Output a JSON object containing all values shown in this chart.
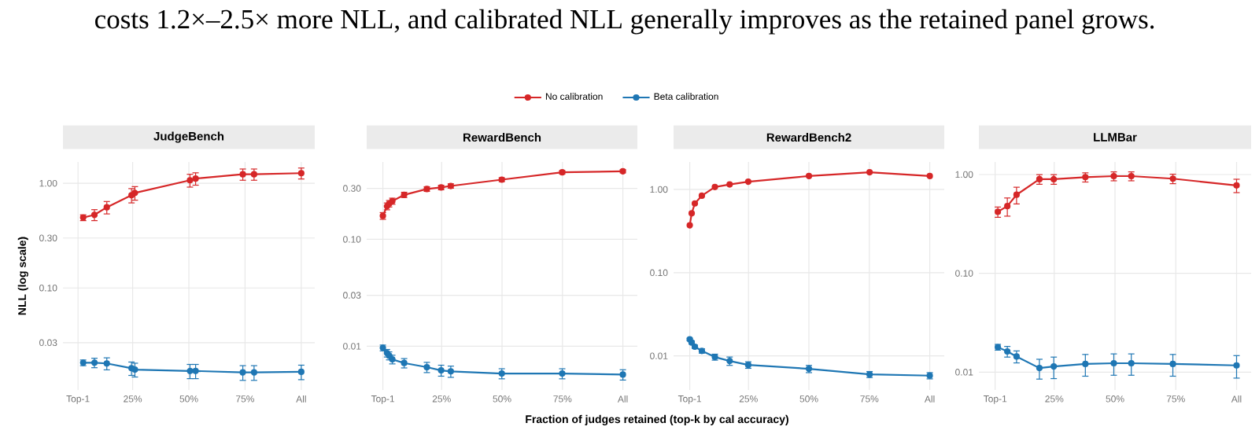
{
  "chart_data": [
    {
      "type": "line",
      "title": "JudgeBench",
      "ylabel": "NLL (log scale)",
      "annotations": [
        "costs 1.2×–2.5× more NLL, and calibrated NLL generally improves as the retained panel grows."
      ],
      "log": "y",
      "grid": true,
      "legend": "top",
      "marker": "circle",
      "xlim": [
        -0.06,
        1.06
      ],
      "ylim": [
        0.0106,
        1.6
      ],
      "xticks": [
        {
          "value": 0.007,
          "label": "Top-1"
        },
        {
          "value": 0.25,
          "label": "25%"
        },
        {
          "value": 0.5,
          "label": "50%"
        },
        {
          "value": 0.75,
          "label": "75%"
        },
        {
          "value": 1.0,
          "label": "All"
        }
      ],
      "yticks": [
        {
          "value": 0.03,
          "label": "0.03"
        },
        {
          "value": 0.1,
          "label": "0.10"
        },
        {
          "value": 0.3,
          "label": "0.30"
        },
        {
          "value": 1.0,
          "label": "1.00"
        }
      ],
      "series": [
        {
          "name": "No calibration",
          "color": "#d62728",
          "x": [
            0.03,
            0.08,
            0.135,
            0.245,
            0.26,
            0.505,
            0.53,
            0.74,
            0.79,
            1.0
          ],
          "values": [
            0.47,
            0.5,
            0.59,
            0.77,
            0.81,
            1.07,
            1.11,
            1.22,
            1.22,
            1.25
          ],
          "errors": [
            0.03,
            0.06,
            0.08,
            0.12,
            0.12,
            0.15,
            0.15,
            0.15,
            0.15,
            0.15
          ]
        },
        {
          "name": "Beta calibration",
          "color": "#1f77b4",
          "x": [
            0.03,
            0.08,
            0.135,
            0.245,
            0.26,
            0.505,
            0.53,
            0.74,
            0.79,
            1.0
          ],
          "values": [
            0.0193,
            0.0193,
            0.019,
            0.0171,
            0.0166,
            0.0161,
            0.0161,
            0.0156,
            0.0156,
            0.0158
          ],
          "errors": [
            0.0012,
            0.002,
            0.0025,
            0.0025,
            0.0025,
            0.0025,
            0.0025,
            0.0025,
            0.0025,
            0.0025
          ]
        }
      ]
    },
    {
      "type": "line",
      "title": "RewardBench",
      "xlabel": "Fraction of judges retained (top-k by cal accuracy)",
      "log": "y",
      "grid": true,
      "marker": "circle",
      "xlim": [
        -0.06,
        1.06
      ],
      "ylim": [
        0.0039,
        0.53
      ],
      "xticks": [
        {
          "value": 0.007,
          "label": "Top-1"
        },
        {
          "value": 0.25,
          "label": "25%"
        },
        {
          "value": 0.5,
          "label": "50%"
        },
        {
          "value": 0.75,
          "label": "75%"
        },
        {
          "value": 1.0,
          "label": "All"
        }
      ],
      "yticks": [
        {
          "value": 0.01,
          "label": "0.01"
        },
        {
          "value": 0.03,
          "label": "0.03"
        },
        {
          "value": 0.1,
          "label": "0.10"
        },
        {
          "value": 0.3,
          "label": "0.30"
        }
      ],
      "series": [
        {
          "color": "#d62728",
          "x": [
            0.007,
            0.024,
            0.033,
            0.046,
            0.095,
            0.189,
            0.248,
            0.288,
            0.499,
            0.749,
            1.0
          ],
          "values": [
            0.166,
            0.204,
            0.216,
            0.228,
            0.261,
            0.296,
            0.306,
            0.316,
            0.362,
            0.424,
            0.434
          ],
          "errors": [
            0.012,
            0.015,
            0.015,
            0.015,
            0.015,
            0.015,
            0.015,
            0.015,
            0.015,
            0.015,
            0.015
          ]
        },
        {
          "color": "#1f77b4",
          "x": [
            0.007,
            0.024,
            0.033,
            0.046,
            0.095,
            0.189,
            0.248,
            0.288,
            0.499,
            0.749,
            1.0
          ],
          "values": [
            0.00966,
            0.00863,
            0.00816,
            0.00754,
            0.00697,
            0.00637,
            0.00595,
            0.00582,
            0.00556,
            0.00556,
            0.00543
          ],
          "errors": [
            0.0006,
            0.0007,
            0.0007,
            0.0007,
            0.0007,
            0.0007,
            0.0007,
            0.0007,
            0.0006,
            0.0006,
            0.0006
          ]
        }
      ]
    },
    {
      "type": "line",
      "title": "RewardBench2",
      "log": "y",
      "grid": true,
      "marker": "circle",
      "xlim": [
        -0.06,
        1.06
      ],
      "ylim": [
        0.0039,
        2.14
      ],
      "xticks": [
        {
          "value": 0.007,
          "label": "Top-1"
        },
        {
          "value": 0.25,
          "label": "25%"
        },
        {
          "value": 0.5,
          "label": "50%"
        },
        {
          "value": 0.75,
          "label": "75%"
        },
        {
          "value": 1.0,
          "label": "All"
        }
      ],
      "yticks": [
        {
          "value": 0.01,
          "label": "0.01"
        },
        {
          "value": 0.1,
          "label": "0.10"
        },
        {
          "value": 1.0,
          "label": "1.00"
        }
      ],
      "series": [
        {
          "color": "#d62728",
          "x": [
            0.007,
            0.015,
            0.028,
            0.057,
            0.111,
            0.172,
            0.249,
            0.5,
            0.751,
            1.0
          ],
          "values": [
            0.371,
            0.517,
            0.679,
            0.842,
            1.07,
            1.15,
            1.24,
            1.45,
            1.61,
            1.45
          ]
        },
        {
          "color": "#1f77b4",
          "x": [
            0.007,
            0.015,
            0.028,
            0.057,
            0.111,
            0.172,
            0.249,
            0.5,
            0.751,
            1.0
          ],
          "values": [
            0.0158,
            0.0145,
            0.0129,
            0.0115,
            0.0097,
            0.0087,
            0.0078,
            0.007,
            0.006,
            0.0058
          ],
          "errors": [
            0.0005,
            0.0006,
            0.0006,
            0.0007,
            0.0008,
            0.001,
            0.0007,
            0.0007,
            0.0005,
            0.0005
          ]
        }
      ]
    },
    {
      "type": "line",
      "title": "LLMBar",
      "log": "y",
      "grid": true,
      "marker": "circle",
      "xlim": [
        -0.06,
        1.06
      ],
      "ylim": [
        0.0066,
        1.34
      ],
      "xticks": [
        {
          "value": 0.007,
          "label": "Top-1"
        },
        {
          "value": 0.25,
          "label": "25%"
        },
        {
          "value": 0.5,
          "label": "50%"
        },
        {
          "value": 0.75,
          "label": "75%"
        },
        {
          "value": 1.0,
          "label": "All"
        }
      ],
      "yticks": [
        {
          "value": 0.01,
          "label": "0.01"
        },
        {
          "value": 0.1,
          "label": "0.10"
        },
        {
          "value": 1.0,
          "label": "1.00"
        }
      ],
      "series": [
        {
          "color": "#d62728",
          "x": [
            0.018,
            0.057,
            0.095,
            0.189,
            0.248,
            0.378,
            0.495,
            0.567,
            0.738,
            1.0
          ],
          "values": [
            0.419,
            0.479,
            0.624,
            0.897,
            0.897,
            0.94,
            0.964,
            0.964,
            0.908,
            0.776
          ],
          "errors": [
            0.05,
            0.1,
            0.12,
            0.1,
            0.1,
            0.1,
            0.1,
            0.1,
            0.1,
            0.12
          ]
        },
        {
          "color": "#1f77b4",
          "x": [
            0.018,
            0.057,
            0.095,
            0.189,
            0.248,
            0.378,
            0.495,
            0.567,
            0.738,
            1.0
          ],
          "values": [
            0.0179,
            0.0162,
            0.0144,
            0.011,
            0.0114,
            0.0121,
            0.0123,
            0.0123,
            0.0121,
            0.0117
          ],
          "errors": [
            0.0012,
            0.002,
            0.002,
            0.0025,
            0.0028,
            0.003,
            0.003,
            0.003,
            0.003,
            0.003
          ]
        }
      ]
    }
  ]
}
